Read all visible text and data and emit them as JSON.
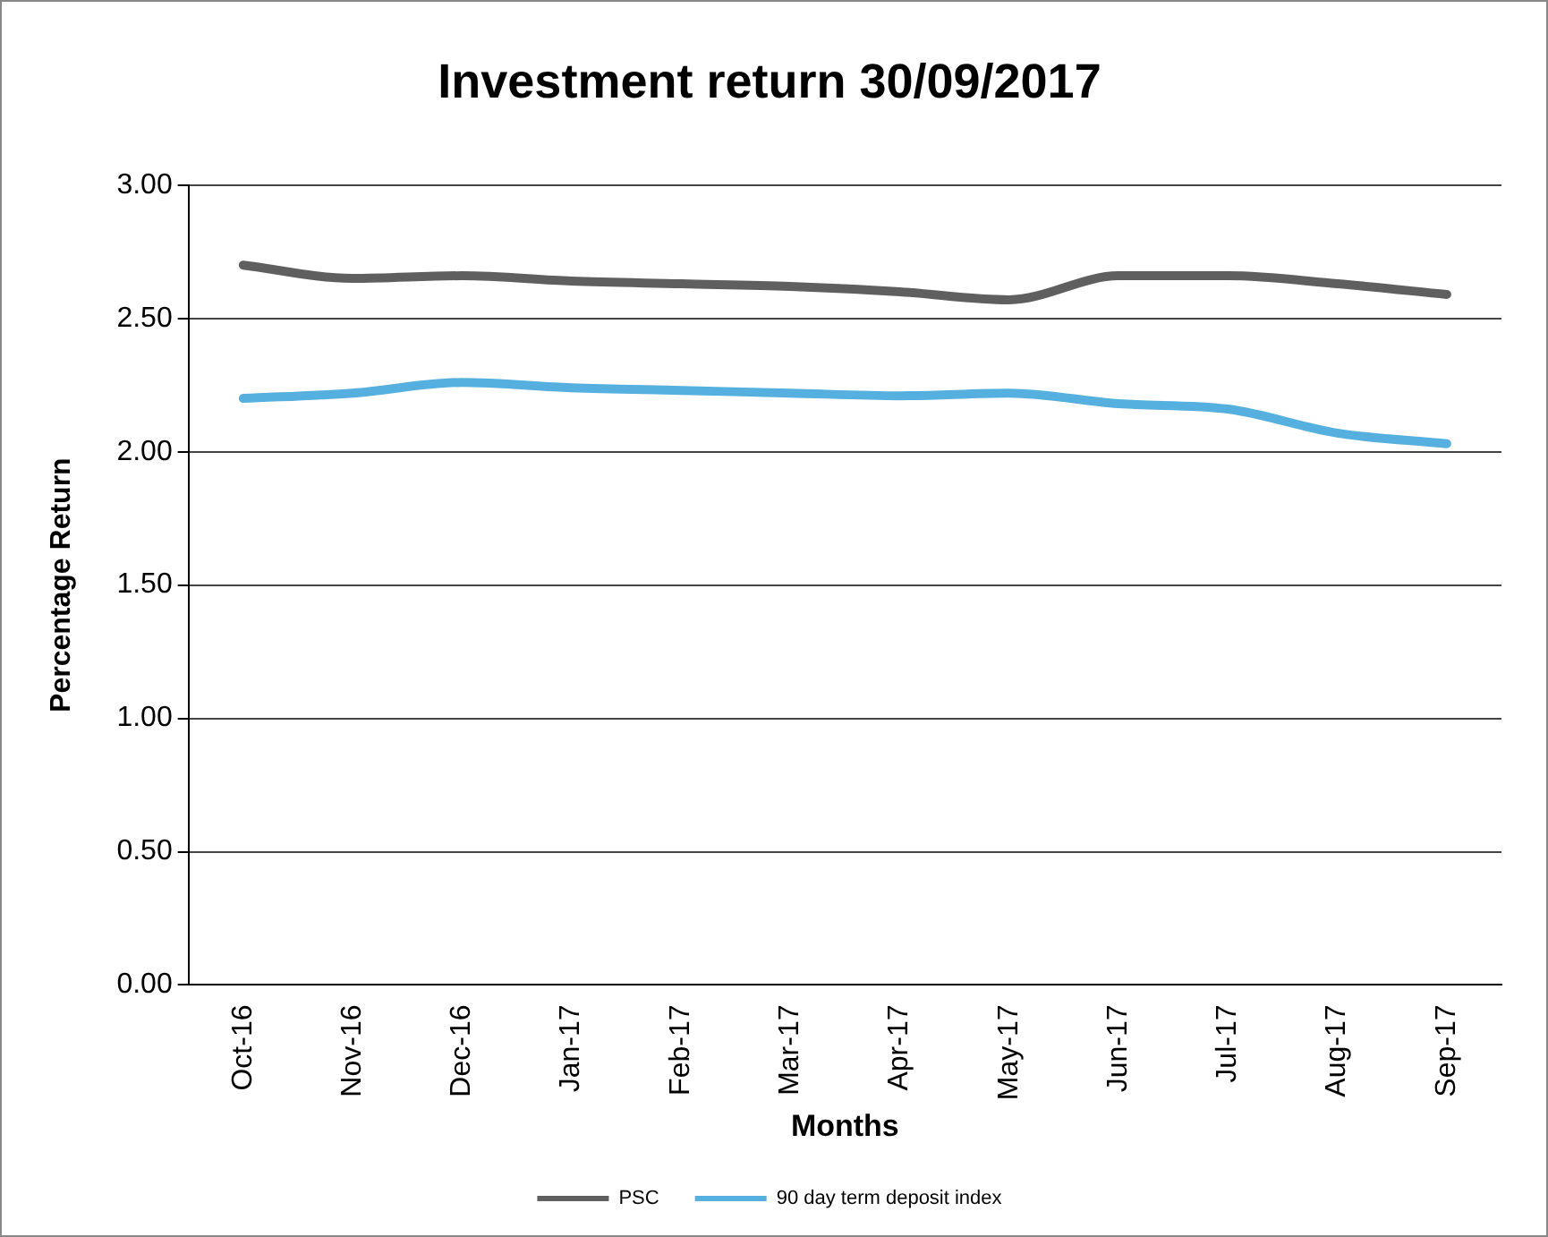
{
  "chart_data": {
    "type": "line",
    "title": "Investment return 30/09/2017",
    "xlabel": "Months",
    "ylabel": "Percentage Return",
    "categories": [
      "Oct-16",
      "Nov-16",
      "Dec-16",
      "Jan-17",
      "Feb-17",
      "Mar-17",
      "Apr-17",
      "May-17",
      "Jun-17",
      "Jul-17",
      "Aug-17",
      "Sep-17"
    ],
    "series": [
      {
        "name": "PSC",
        "color": "#5f5f5f",
        "values": [
          2.7,
          2.65,
          2.66,
          2.64,
          2.63,
          2.62,
          2.6,
          2.57,
          2.66,
          2.66,
          2.63,
          2.59
        ]
      },
      {
        "name": "90 day term deposit index",
        "color": "#55b0e0",
        "values": [
          2.2,
          2.22,
          2.26,
          2.24,
          2.23,
          2.22,
          2.21,
          2.22,
          2.18,
          2.16,
          2.07,
          2.03
        ]
      }
    ],
    "ylim": [
      0,
      3
    ],
    "yticks": [
      {
        "value": 0,
        "label": "0.00"
      },
      {
        "value": 0.5,
        "label": "0.50"
      },
      {
        "value": 1,
        "label": "1.00"
      },
      {
        "value": 1.5,
        "label": "1.50"
      },
      {
        "value": 2,
        "label": "2.00"
      },
      {
        "value": 2.5,
        "label": "2.50"
      },
      {
        "value": 3,
        "label": "3.00"
      }
    ],
    "grid": "y",
    "legend": "bottom",
    "marker": "none",
    "line_style": "solid"
  }
}
